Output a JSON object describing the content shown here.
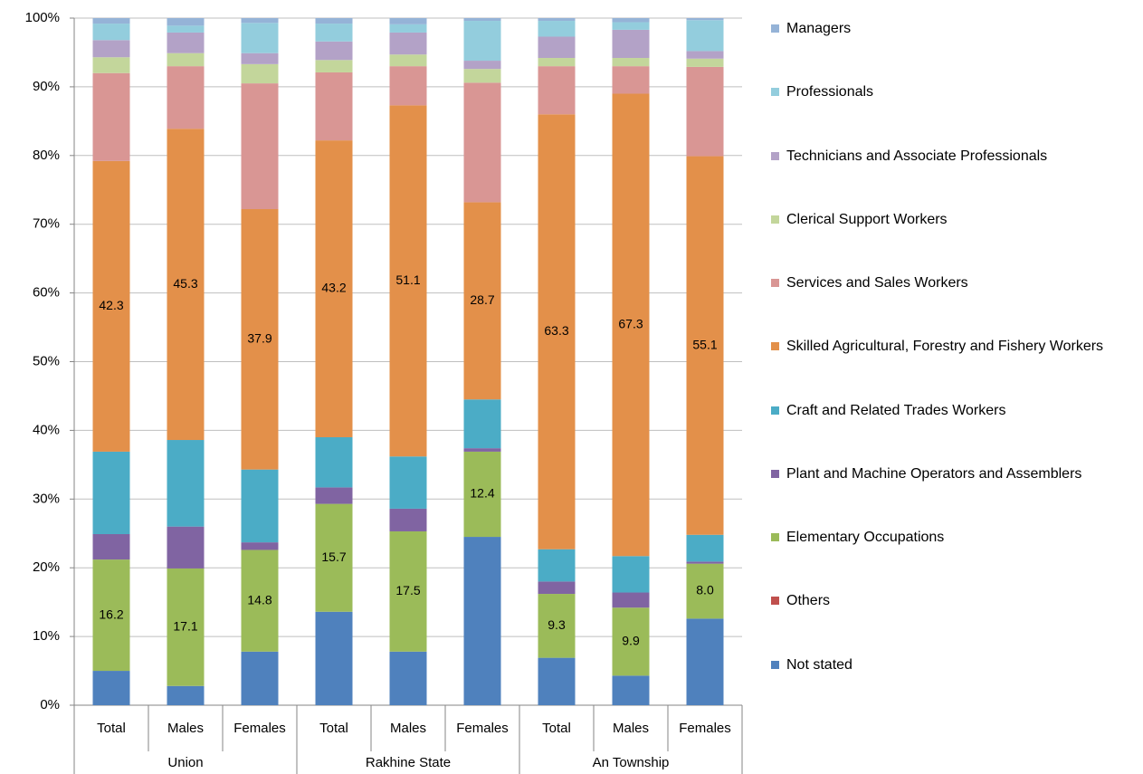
{
  "chart_data": {
    "type": "stacked_bar",
    "categories": [
      "Total",
      "Males",
      "Females",
      "Total",
      "Males",
      "Females",
      "Total",
      "Males",
      "Females"
    ],
    "groups": [
      "Union",
      "Rakhine State",
      "An Township"
    ],
    "ylim": [
      0,
      100
    ],
    "yticks": [
      {
        "value": 0,
        "label": "0%"
      },
      {
        "value": 10,
        "label": "10%"
      },
      {
        "value": 20,
        "label": "20%"
      },
      {
        "value": 30,
        "label": "30%"
      },
      {
        "value": 40,
        "label": "40%"
      },
      {
        "value": 50,
        "label": "50%"
      },
      {
        "value": 60,
        "label": "60%"
      },
      {
        "value": 70,
        "label": "70%"
      },
      {
        "value": 80,
        "label": "80%"
      },
      {
        "value": 90,
        "label": "90%"
      },
      {
        "value": 100,
        "label": "100%"
      }
    ],
    "grid": true,
    "legend": "right",
    "series": [
      {
        "name": "Not stated",
        "color": "#4f81bd",
        "values": [
          5.0,
          2.8,
          7.8,
          13.6,
          7.8,
          24.5,
          6.9,
          4.3,
          12.6
        ]
      },
      {
        "name": "Others",
        "color": "#c0504d",
        "values": [
          0,
          0,
          0,
          0,
          0,
          0,
          0,
          0,
          0
        ]
      },
      {
        "name": "Elementary Occupations",
        "color": "#9bbb59",
        "values": [
          16.2,
          17.1,
          14.8,
          15.7,
          17.5,
          12.4,
          9.3,
          9.9,
          8.0
        ],
        "value_labels": [
          "16.2",
          "17.1",
          "14.8",
          "15.7",
          "17.5",
          "12.4",
          "9.3",
          "9.9",
          "8.0"
        ]
      },
      {
        "name": "Plant and Machine Operators and Assemblers",
        "color": "#8064a2",
        "values": [
          3.7,
          6.1,
          1.1,
          2.4,
          3.3,
          0.5,
          1.8,
          2.2,
          0.3
        ]
      },
      {
        "name": "Craft and Related Trades Workers",
        "color": "#4bacc6",
        "values": [
          12.0,
          12.6,
          10.6,
          7.3,
          7.6,
          7.1,
          4.7,
          5.3,
          3.9
        ]
      },
      {
        "name": "Skilled Agricultural, Forestry and Fishery Workers",
        "color": "#e3904a",
        "values": [
          42.3,
          45.3,
          37.9,
          43.2,
          51.1,
          28.7,
          63.3,
          67.3,
          55.1
        ],
        "value_labels": [
          "42.3",
          "45.3",
          "37.9",
          "43.2",
          "51.1",
          "28.7",
          "63.3",
          "67.3",
          "55.1"
        ]
      },
      {
        "name": "Services and Sales Workers",
        "color": "#d99694",
        "values": [
          12.8,
          9.1,
          18.3,
          9.9,
          5.7,
          17.4,
          7.0,
          4.0,
          13.0
        ]
      },
      {
        "name": "Clerical Support Workers",
        "color": "#c3d69b",
        "values": [
          2.3,
          1.9,
          2.8,
          1.8,
          1.7,
          2.0,
          1.2,
          1.2,
          1.2
        ]
      },
      {
        "name": "Technicians and Associate Professionals",
        "color": "#b3a2c7",
        "values": [
          2.5,
          3.0,
          1.6,
          2.7,
          3.2,
          1.2,
          3.1,
          4.1,
          1.1
        ]
      },
      {
        "name": "Professionals",
        "color": "#93cddd",
        "values": [
          2.4,
          1.0,
          4.4,
          2.6,
          1.2,
          5.8,
          2.3,
          1.1,
          4.5
        ]
      },
      {
        "name": "Managers",
        "color": "#95b3d7",
        "values": [
          0.8,
          1.1,
          0.7,
          0.8,
          0.9,
          0.4,
          0.4,
          0.6,
          0.3
        ]
      }
    ]
  }
}
